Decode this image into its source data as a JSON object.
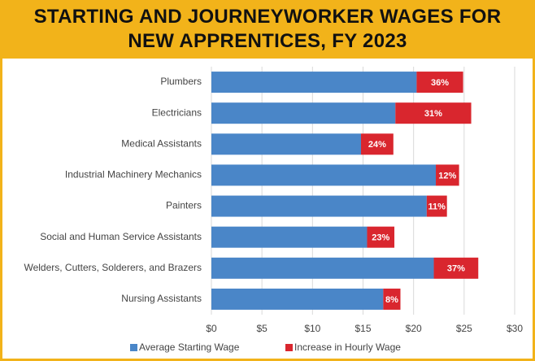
{
  "chart_data": {
    "type": "stacked-barh",
    "title": "STARTING AND JOURNEYWORKER WAGES FOR NEW APPRENTICES, FY 2023",
    "categories": [
      "Plumbers",
      "Electricians",
      "Medical Assistants",
      "Industrial Machinery Mechanics",
      "Painters",
      "Social and Human Service Assistants",
      "Welders, Cutters, Solderers, and Brazers",
      "Nursing Assistants"
    ],
    "series": [
      {
        "name": "Average Starting Wage",
        "color": "#4a86c8",
        "values": [
          20.3,
          18.2,
          14.8,
          22.2,
          21.3,
          15.4,
          22.0,
          17.0
        ]
      },
      {
        "name": "Increase in Hourly Wage",
        "color": "#d9262e",
        "values": [
          4.6,
          7.5,
          3.2,
          2.3,
          2.0,
          2.7,
          4.4,
          1.7
        ],
        "labels": [
          "36%",
          "31%",
          "24%",
          "12%",
          "11%",
          "23%",
          "37%",
          "8%"
        ]
      }
    ],
    "xlim": [
      0,
      30
    ],
    "xticks": [
      {
        "value": 0,
        "label": "$0"
      },
      {
        "value": 5,
        "label": "$5"
      },
      {
        "value": 10,
        "label": "$10"
      },
      {
        "value": 15,
        "label": "$15"
      },
      {
        "value": 20,
        "label": "$20"
      },
      {
        "value": 25,
        "label": "$25"
      },
      {
        "value": 30,
        "label": "$30"
      }
    ],
    "grid": true
  }
}
